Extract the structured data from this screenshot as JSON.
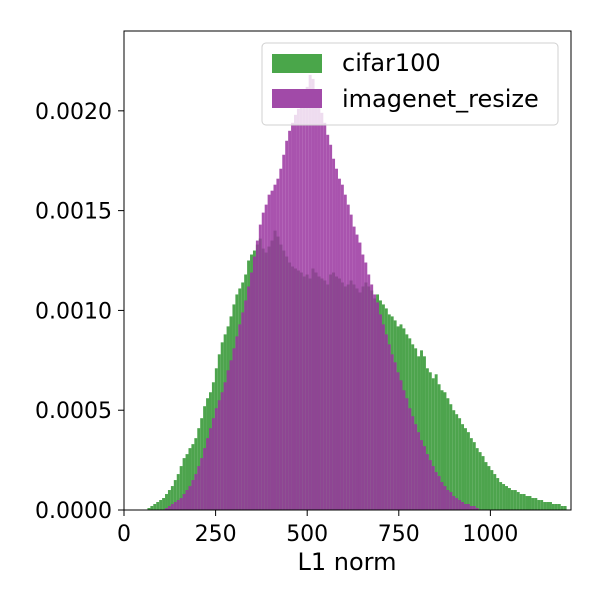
{
  "chart_data": {
    "type": "histogram",
    "xlabel": "L1 norm",
    "ylabel": "",
    "xlim": [
      0,
      1220
    ],
    "ylim": [
      0,
      0.0024
    ],
    "x_ticks": [
      0,
      250,
      500,
      750,
      1000
    ],
    "x_tick_labels": [
      "0",
      "250",
      "500",
      "750",
      "1000"
    ],
    "y_ticks": [
      0,
      0.0005,
      0.001,
      0.0015,
      0.002
    ],
    "y_tick_labels": [
      "0.0000",
      "0.0005",
      "0.0010",
      "0.0015",
      "0.0020"
    ],
    "grid": false,
    "legend_position": "top-right",
    "bin_edges_start": 0,
    "bin_width": 8,
    "series": [
      {
        "name": "cifar100",
        "color": "#3a9a3a",
        "opacity": 0.9,
        "bin_start_index": 8,
        "values": [
          1e-05,
          2e-05,
          3e-05,
          4e-05,
          5e-05,
          6e-05,
          8e-05,
          0.0001,
          0.00012,
          0.00015,
          0.00018,
          0.00022,
          0.00026,
          0.00028,
          0.00031,
          0.00033,
          0.00036,
          0.00041,
          0.00046,
          0.00052,
          0.00056,
          0.00059,
          0.00064,
          0.00071,
          0.00078,
          0.00084,
          0.00088,
          0.00092,
          0.00097,
          0.00103,
          0.00108,
          0.00111,
          0.00114,
          0.00118,
          0.00125,
          0.00128,
          0.0013,
          0.00133,
          0.00136,
          0.00131,
          0.00129,
          0.00132,
          0.00135,
          0.0014,
          0.00137,
          0.00133,
          0.0013,
          0.00127,
          0.00124,
          0.00122,
          0.00121,
          0.0012,
          0.00119,
          0.00117,
          0.00118,
          0.00116,
          0.00121,
          0.00119,
          0.00117,
          0.00116,
          0.00115,
          0.00113,
          0.00118,
          0.00119,
          0.00117,
          0.00116,
          0.00114,
          0.00112,
          0.00113,
          0.00115,
          0.00113,
          0.00111,
          0.00109,
          0.00112,
          0.00114,
          0.00112,
          0.0011,
          0.00106,
          0.00108,
          0.00105,
          0.00103,
          0.00101,
          0.00098,
          0.00097,
          0.00095,
          0.00092,
          0.00093,
          0.00091,
          0.00088,
          0.00086,
          0.00083,
          0.00081,
          0.00077,
          0.0008,
          0.00077,
          0.00071,
          0.00069,
          0.00066,
          0.00068,
          0.00063,
          0.0006,
          0.00059,
          0.00056,
          0.00053,
          0.0005,
          0.00048,
          0.00046,
          0.00043,
          0.00041,
          0.00039,
          0.00036,
          0.00034,
          0.00031,
          0.00029,
          0.00027,
          0.00024,
          0.00022,
          0.0002,
          0.00018,
          0.00016,
          0.00014,
          0.00013,
          0.00012,
          0.00011,
          0.0001,
          0.0001,
          9e-05,
          8e-05,
          8e-05,
          7e-05,
          7e-05,
          6e-05,
          6e-05,
          5e-05,
          5e-05,
          4e-05,
          4e-05,
          4e-05,
          3e-05,
          3e-05,
          3e-05,
          2e-05,
          2e-05
        ]
      },
      {
        "name": "imagenet_resize",
        "color": "#9a35a0",
        "opacity": 0.85,
        "bin_start_index": 14,
        "values": [
          1e-05,
          2e-05,
          3e-05,
          4e-05,
          5e-05,
          6e-05,
          8e-05,
          0.0001,
          0.00012,
          0.00015,
          0.00018,
          0.00022,
          0.00026,
          0.00031,
          0.00036,
          0.00041,
          0.00046,
          0.00051,
          0.00055,
          0.00059,
          0.00064,
          0.0007,
          0.00075,
          0.00081,
          0.00087,
          0.00093,
          0.00099,
          0.00105,
          0.00112,
          0.00119,
          0.00127,
          0.00135,
          0.00143,
          0.00149,
          0.00153,
          0.00158,
          0.0016,
          0.00163,
          0.00166,
          0.00171,
          0.00178,
          0.00185,
          0.0019,
          0.00194,
          0.00198,
          0.00201,
          0.00205,
          0.00207,
          0.00212,
          0.00218,
          0.00216,
          0.00209,
          0.00205,
          0.00199,
          0.00194,
          0.00188,
          0.00183,
          0.00176,
          0.00171,
          0.00166,
          0.00163,
          0.00158,
          0.00153,
          0.00148,
          0.00142,
          0.00138,
          0.00134,
          0.00128,
          0.00124,
          0.00118,
          0.00113,
          0.00108,
          0.00104,
          0.00098,
          0.00093,
          0.00088,
          0.00083,
          0.00078,
          0.00074,
          0.00069,
          0.00065,
          0.0006,
          0.00056,
          0.00051,
          0.00047,
          0.00043,
          0.00039,
          0.00035,
          0.00032,
          0.00028,
          0.00025,
          0.00022,
          0.00019,
          0.00017,
          0.00014,
          0.00012,
          0.0001,
          9e-05,
          7e-05,
          6e-05,
          5e-05,
          4e-05,
          3e-05,
          3e-05,
          2e-05,
          2e-05,
          1e-05
        ]
      }
    ],
    "overlap_color": "#6b2f6b"
  },
  "legend": {
    "items": [
      {
        "label": "cifar100",
        "color": "#4aa64a"
      },
      {
        "label": "imagenet_resize",
        "color": "#a14aa8"
      }
    ]
  }
}
